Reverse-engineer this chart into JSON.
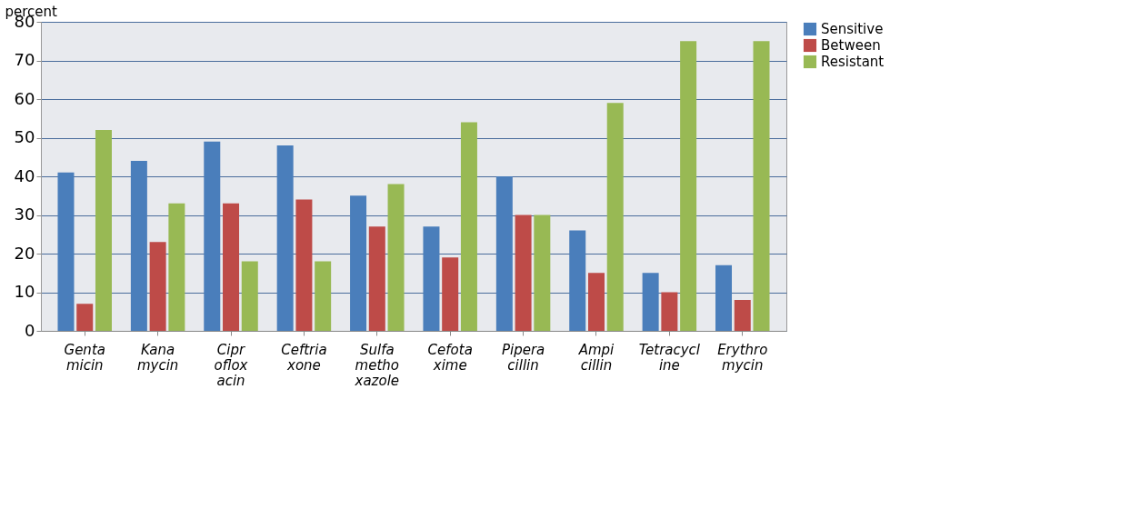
{
  "chart_data": {
    "type": "bar",
    "ylabel": "percent",
    "categories": [
      "Genta\nmicin",
      "Kana\nmycin",
      "Cipr\noflox\nacin",
      "Ceftria\nxone",
      "Sulfa\nmetho\nxazole",
      "Cefota\nxime",
      "Pipera\ncillin",
      "Ampi\ncillin",
      "Tetracycl\nine",
      "Erythro\nmycin"
    ],
    "series": [
      {
        "name": "Sensitive",
        "color": "#4a7ebb",
        "values": [
          41,
          44,
          49,
          48,
          35,
          27,
          40,
          26,
          15,
          17
        ]
      },
      {
        "name": "Between",
        "color": "#be4b48",
        "values": [
          7,
          23,
          33,
          34,
          27,
          19,
          30,
          15,
          10,
          8
        ]
      },
      {
        "name": "Resistant",
        "color": "#98b954",
        "values": [
          52,
          33,
          18,
          18,
          38,
          54,
          30,
          59,
          75,
          75
        ]
      }
    ],
    "ylim": [
      0,
      80
    ],
    "yticks": [
      0,
      10,
      20,
      30,
      40,
      50,
      60,
      70,
      80
    ],
    "grid": "y",
    "legend": "right"
  }
}
